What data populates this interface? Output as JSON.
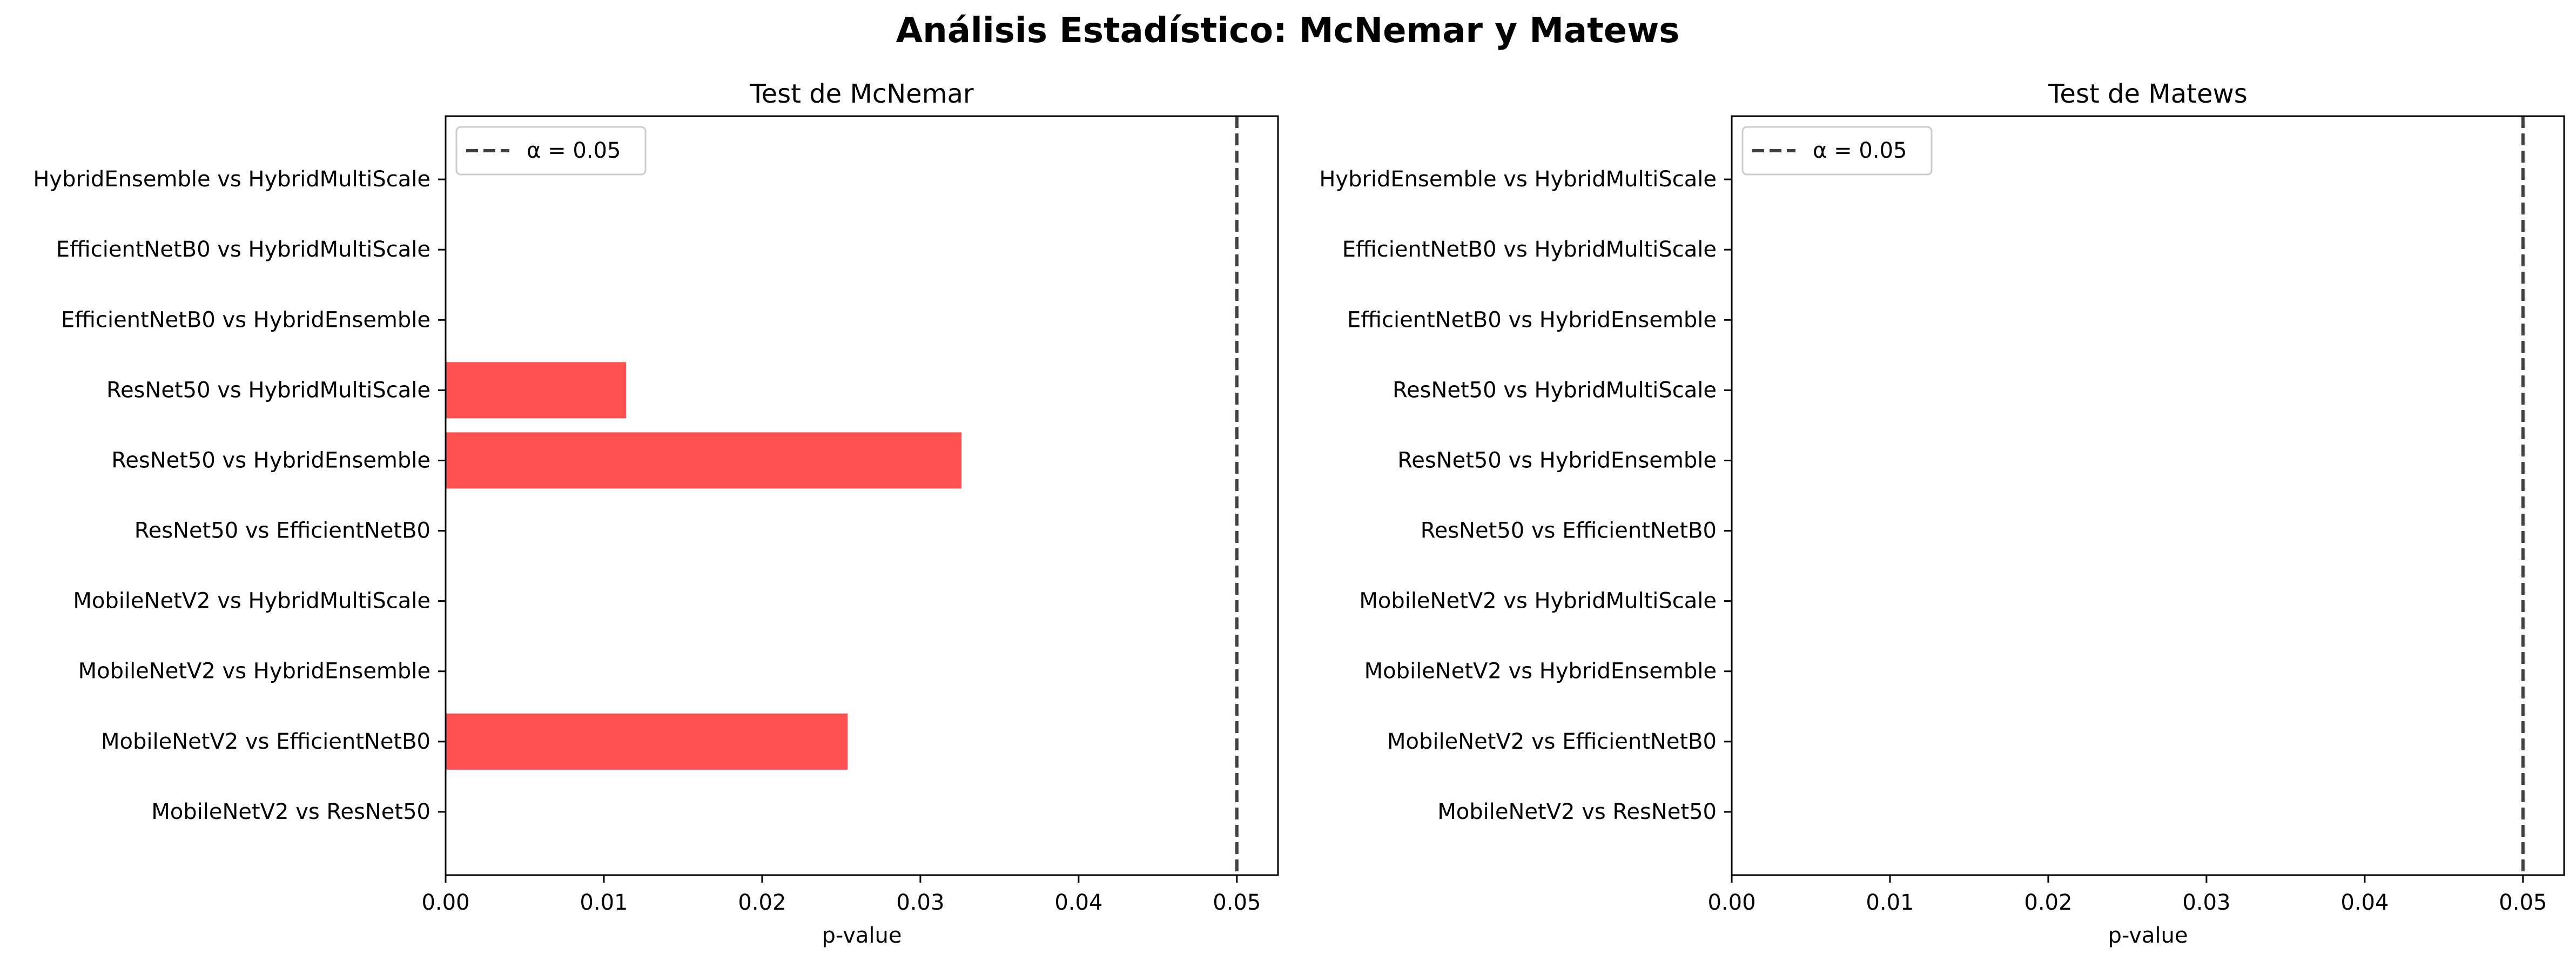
{
  "figure": {
    "title": "Análisis Estadístico: McNemar y Matews"
  },
  "colors": {
    "bar": "#ff5050",
    "threshold_line": "#404040",
    "axis": "#000000",
    "text": "#000000"
  },
  "chart_data": [
    {
      "type": "bar",
      "orientation": "horizontal",
      "title": "Test de McNemar",
      "xlabel": "p-value",
      "ylabel": "",
      "xlim": [
        0,
        0.0526
      ],
      "xticks": [
        0.0,
        0.01,
        0.02,
        0.03,
        0.04,
        0.05
      ],
      "xtick_labels": [
        "0.00",
        "0.01",
        "0.02",
        "0.03",
        "0.04",
        "0.05"
      ],
      "categories": [
        "MobileNetV2 vs ResNet50",
        "MobileNetV2 vs EfficientNetB0",
        "MobileNetV2 vs HybridEnsemble",
        "MobileNetV2 vs HybridMultiScale",
        "ResNet50 vs EfficientNetB0",
        "ResNet50 vs HybridEnsemble",
        "ResNet50 vs HybridMultiScale",
        "EfficientNetB0 vs HybridEnsemble",
        "EfficientNetB0 vs HybridMultiScale",
        "HybridEnsemble vs HybridMultiScale"
      ],
      "values": [
        0.0,
        0.0254,
        0.0,
        0.0,
        0.0,
        0.0326,
        0.0114,
        0.0,
        0.0,
        0.0
      ],
      "threshold": {
        "value": 0.05,
        "label": "α = 0.05",
        "style": "dashed"
      },
      "legend": {
        "position": "upper-left",
        "entries": [
          "α = 0.05"
        ]
      },
      "grid": false
    },
    {
      "type": "bar",
      "orientation": "horizontal",
      "title": "Test de Matews",
      "xlabel": "p-value",
      "ylabel": "",
      "xlim": [
        0,
        0.0526
      ],
      "xticks": [
        0.0,
        0.01,
        0.02,
        0.03,
        0.04,
        0.05
      ],
      "xtick_labels": [
        "0.00",
        "0.01",
        "0.02",
        "0.03",
        "0.04",
        "0.05"
      ],
      "categories": [
        "MobileNetV2 vs ResNet50",
        "MobileNetV2 vs EfficientNetB0",
        "MobileNetV2 vs HybridEnsemble",
        "MobileNetV2 vs HybridMultiScale",
        "ResNet50 vs EfficientNetB0",
        "ResNet50 vs HybridEnsemble",
        "ResNet50 vs HybridMultiScale",
        "EfficientNetB0 vs HybridEnsemble",
        "EfficientNetB0 vs HybridMultiScale",
        "HybridEnsemble vs HybridMultiScale"
      ],
      "values": [
        0,
        0,
        0,
        0,
        0,
        0,
        0,
        0,
        0,
        0
      ],
      "threshold": {
        "value": 0.05,
        "label": "α = 0.05",
        "style": "dashed"
      },
      "legend": {
        "position": "upper-left",
        "entries": [
          "α = 0.05"
        ]
      },
      "grid": false
    }
  ]
}
